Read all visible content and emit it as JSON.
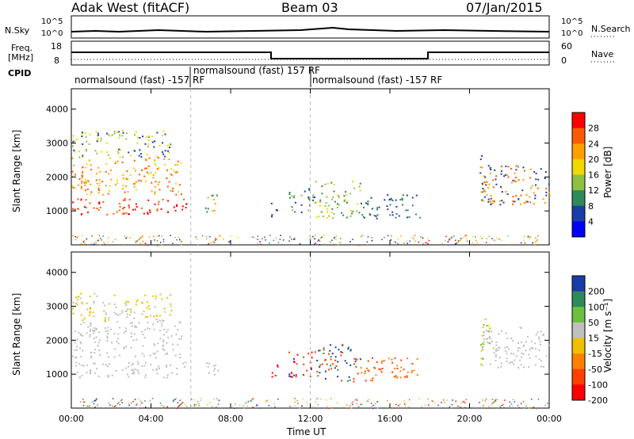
{
  "header": {
    "site": "Adak West (fitACF)",
    "beam": "Beam 03",
    "date": "07/Jan/2015"
  },
  "panels": {
    "sky_label": "N.Sky",
    "sky_ticks": [
      "10^5",
      "10^0"
    ],
    "sky_right_ticks": [
      "10^5",
      "10^0"
    ],
    "search_label": "N.Search",
    "freq_label_1": "Freq.",
    "freq_label_2": "[MHz]",
    "freq_ticks": [
      "18",
      "8"
    ],
    "nave_ticks": [
      "60",
      "0"
    ],
    "nave_label": "Nave",
    "cpid_label": "CPID",
    "cpid_segments": [
      "normalsound (fast) -157 RF",
      "normalsound (fast) 157 RF",
      "normalsound (fast) -157 RF"
    ]
  },
  "chart_data": [
    {
      "type": "heatmap",
      "name": "power",
      "ylabel": "Slant Range [km]",
      "xlabel": "",
      "x_ticks": [
        "00:00",
        "04:00",
        "08:00",
        "12:00",
        "16:00",
        "20:00",
        "00:00"
      ],
      "y_ticks": [
        1000,
        2000,
        3000,
        4000
      ],
      "ylim": [
        0,
        4600
      ],
      "xlim_hours": [
        0,
        24
      ],
      "colorbar_label": "Power [dB]",
      "colorbar_ticks": [
        28,
        24,
        20,
        16,
        12,
        8,
        4
      ],
      "colorbar_colors": [
        "#ff0000",
        "#ff5a00",
        "#ffa000",
        "#f0d800",
        "#90c040",
        "#2e8a5a",
        "#1a3da8",
        "#0000ff"
      ]
    },
    {
      "type": "heatmap",
      "name": "velocity",
      "ylabel": "Slant Range [km]",
      "xlabel": "Time UT",
      "x_ticks": [
        "00:00",
        "04:00",
        "08:00",
        "12:00",
        "16:00",
        "20:00",
        "00:00"
      ],
      "y_ticks": [
        1000,
        2000,
        3000,
        4000
      ],
      "ylim": [
        0,
        4600
      ],
      "xlim_hours": [
        0,
        24
      ],
      "colorbar_label": "Velocity [m s⁻¹]",
      "colorbar_ticks": [
        200,
        100,
        50,
        15,
        -15,
        -50,
        -100,
        -200
      ],
      "colorbar_colors": [
        "#1a3da8",
        "#2e8a5a",
        "#6cc040",
        "#c0c0c0",
        "#f0c000",
        "#ff8000",
        "#ff4000",
        "#ff0000"
      ]
    }
  ]
}
